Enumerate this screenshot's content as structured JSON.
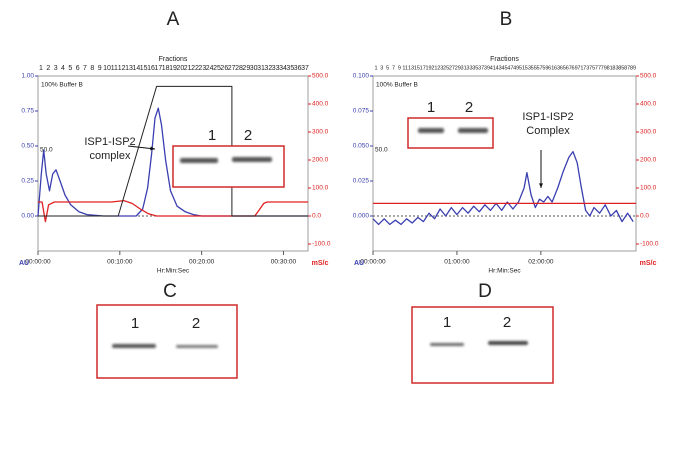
{
  "chart_data": [
    {
      "type": "line",
      "panel": "A",
      "fractions_title": "Fractions",
      "fractions": [
        1,
        2,
        3,
        4,
        5,
        6,
        7,
        8,
        9,
        10,
        11,
        12,
        13,
        14,
        15,
        16,
        17,
        18,
        19,
        20,
        21,
        22,
        23,
        24,
        25,
        26,
        27,
        28,
        29,
        30,
        31,
        32,
        33,
        34,
        35,
        36,
        37
      ],
      "buffer_label": "100% Buffer B",
      "level_label": "50.0",
      "annotation": [
        "ISP1-ISP2",
        "complex"
      ],
      "inset_lanes": [
        "1",
        "2"
      ],
      "xlabel": "Hr:Min:Sec",
      "ylabel": "AU",
      "y2label": "mS/c",
      "xlim": [
        0,
        33
      ],
      "xticks": [
        {
          "value": 0,
          "label": "00:00:00"
        },
        {
          "value": 10,
          "label": "00:10:00"
        },
        {
          "value": 20,
          "label": "00:20:00"
        },
        {
          "value": 30,
          "label": "00:30:00"
        }
      ],
      "ylim": [
        -0.25,
        1.0
      ],
      "yticks": [
        {
          "value": 0,
          "label": "0.00"
        },
        {
          "value": 0.25,
          "label": "0.25"
        },
        {
          "value": 0.5,
          "label": "0.50"
        },
        {
          "value": 0.75,
          "label": "0.75"
        },
        {
          "value": 1,
          "label": "1.00"
        }
      ],
      "y2lim": [
        -125,
        500
      ],
      "y2ticks": [
        {
          "value": -100,
          "label": "-100.0"
        },
        {
          "value": 0,
          "label": "0.0"
        },
        {
          "value": 100,
          "label": "100.0"
        },
        {
          "value": 200,
          "label": "200.0"
        },
        {
          "value": 300,
          "label": "300.0"
        },
        {
          "value": 400,
          "label": "400.0"
        },
        {
          "value": 500,
          "label": "500.0"
        }
      ],
      "y3lim": [
        -27,
        108
      ],
      "series": [
        {
          "color": "#3a3fb0",
          "axis": "y",
          "x": [
            0,
            0.4,
            0.7,
            1.0,
            1.4,
            1.8,
            2.2,
            2.7,
            3.3,
            4,
            5,
            6,
            8,
            10,
            11,
            12,
            12.8,
            13.4,
            13.9,
            14.3,
            14.7,
            15.1,
            15.6,
            16.2,
            17,
            18,
            19,
            20,
            22,
            26,
            30,
            33
          ],
          "values": [
            0.0,
            0.3,
            0.47,
            0.3,
            0.18,
            0.3,
            0.33,
            0.25,
            0.15,
            0.08,
            0.03,
            0.01,
            0.0,
            0.0,
            0.0,
            0.0,
            0.05,
            0.2,
            0.45,
            0.7,
            0.77,
            0.65,
            0.4,
            0.18,
            0.07,
            0.03,
            0.01,
            0.0,
            0.0,
            0.0,
            0.0,
            0.0
          ]
        },
        {
          "color": "#e02020",
          "axis": "y2",
          "x": [
            0,
            0.5,
            0.9,
            1.3,
            2,
            9,
            10.5,
            11.5,
            12.5,
            13.5,
            14.5,
            26.5,
            27,
            27.6,
            28,
            33
          ],
          "values": [
            50,
            50,
            -20,
            40,
            50,
            50,
            55,
            45,
            25,
            8,
            0,
            0,
            20,
            45,
            50,
            50
          ]
        },
        {
          "color": "#222222",
          "axis": "y3",
          "x": [
            0,
            9.8,
            14.5,
            23.7,
            23.7,
            33
          ],
          "values": [
            0,
            0,
            100,
            100,
            0,
            0
          ]
        }
      ]
    },
    {
      "type": "line",
      "panel": "B",
      "fractions_title": "Fractions",
      "fractions": [
        1,
        3,
        5,
        7,
        9,
        11,
        13,
        15,
        17,
        19,
        21,
        23,
        25,
        27,
        29,
        31,
        33,
        35,
        37,
        39,
        41,
        43,
        45,
        47,
        49,
        51,
        53,
        55,
        57,
        59,
        61,
        63,
        65,
        67,
        69,
        71,
        73,
        75,
        77,
        79,
        81,
        83,
        85,
        87,
        89
      ],
      "buffer_label": "100% Buffer B",
      "level_label": "50.0",
      "annotation": [
        "ISP1-ISP2",
        "Complex"
      ],
      "inset_lanes": [
        "1",
        "2"
      ],
      "xlabel": "Hr:Min:Sec",
      "ylabel": "AU",
      "y2label": "mS/c",
      "xlim": [
        0,
        188
      ],
      "xticks": [
        {
          "value": 0,
          "label": "00:00:00"
        },
        {
          "value": 60,
          "label": "01:00:00"
        },
        {
          "value": 120,
          "label": "02:00:00"
        }
      ],
      "ylim": [
        -0.025,
        0.1
      ],
      "yticks": [
        {
          "value": 0,
          "label": "0.000"
        },
        {
          "value": 0.025,
          "label": "0.025"
        },
        {
          "value": 0.05,
          "label": "0.050"
        },
        {
          "value": 0.075,
          "label": "0.075"
        },
        {
          "value": 0.1,
          "label": "0.100"
        }
      ],
      "y2lim": [
        -125,
        500
      ],
      "y2ticks": [
        {
          "value": -100,
          "label": "-100.0"
        },
        {
          "value": 0,
          "label": "0.0"
        },
        {
          "value": 100,
          "label": "100.0"
        },
        {
          "value": 200,
          "label": "200.0"
        },
        {
          "value": 300,
          "label": "300.0"
        },
        {
          "value": 400,
          "label": "400.0"
        },
        {
          "value": 500,
          "label": "500.0"
        }
      ],
      "series": [
        {
          "color": "#3a3fb0",
          "axis": "y",
          "x": [
            0,
            4,
            8,
            12,
            16,
            20,
            24,
            28,
            32,
            36,
            40,
            44,
            48,
            52,
            56,
            60,
            64,
            68,
            72,
            76,
            80,
            84,
            88,
            92,
            96,
            100,
            104,
            108,
            110,
            113,
            116,
            119,
            122,
            125,
            128,
            132,
            136,
            140,
            143,
            146,
            149,
            152,
            155,
            158,
            162,
            166,
            170,
            174,
            178,
            182,
            186
          ],
          "values": [
            -0.002,
            -0.006,
            -0.002,
            -0.006,
            -0.003,
            -0.006,
            -0.002,
            -0.005,
            -0.001,
            -0.004,
            0.002,
            -0.002,
            0.005,
            0.0,
            0.006,
            0.001,
            0.006,
            0.002,
            0.007,
            0.003,
            0.008,
            0.004,
            0.009,
            0.004,
            0.01,
            0.005,
            0.01,
            0.02,
            0.031,
            0.015,
            0.006,
            0.012,
            0.01,
            0.014,
            0.01,
            0.02,
            0.032,
            0.042,
            0.046,
            0.038,
            0.02,
            0.004,
            0.0,
            0.006,
            0.002,
            0.008,
            0.0,
            0.004,
            -0.004,
            0.002,
            -0.004
          ]
        },
        {
          "color": "#e02020",
          "axis": "y2",
          "x": [
            0,
            188
          ],
          "values": [
            45,
            45
          ]
        }
      ]
    }
  ],
  "blots": [
    {
      "panel": "C",
      "lanes": [
        "1",
        "2"
      ]
    },
    {
      "panel": "D",
      "lanes": [
        "1",
        "2"
      ]
    }
  ]
}
